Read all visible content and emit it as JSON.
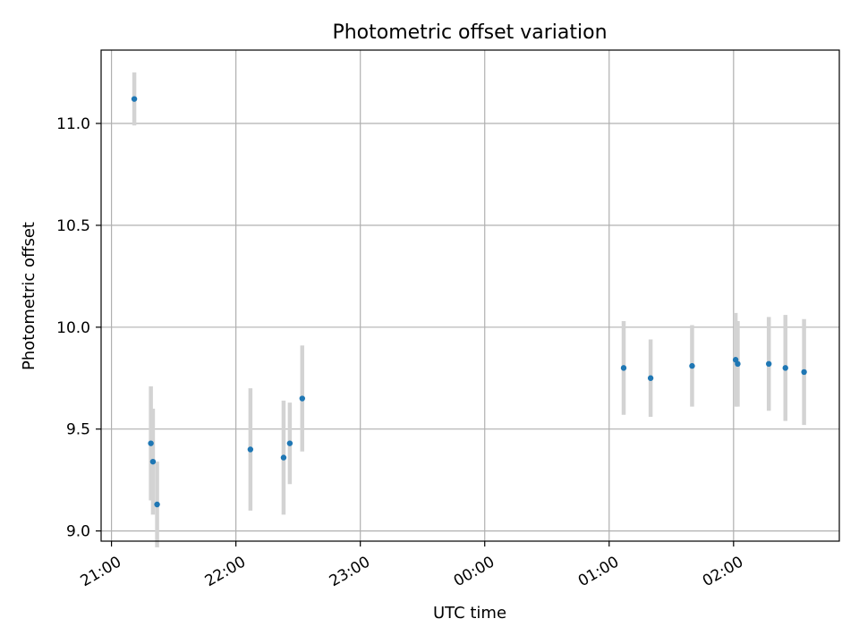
{
  "chart_data": {
    "type": "scatter",
    "title": "Photometric offset variation",
    "xlabel": "UTC time",
    "ylabel": "Photometric offset",
    "x_axis_type": "time",
    "xlim": [
      "20:55",
      "02:51"
    ],
    "ylim": [
      8.95,
      11.36
    ],
    "grid": true,
    "x_ticks": [
      "21:00",
      "22:00",
      "23:00",
      "00:00",
      "01:00",
      "02:00"
    ],
    "y_ticks": [
      "9.0",
      "9.5",
      "10.0",
      "10.5",
      "11.0"
    ],
    "marker_color": "#1f77b4",
    "errorbar_color": "#d3d3d3",
    "points": [
      {
        "x": "21:11",
        "y": 11.12,
        "err": 0.13
      },
      {
        "x": "21:19",
        "y": 9.43,
        "err": 0.28
      },
      {
        "x": "21:20",
        "y": 9.34,
        "err": 0.26
      },
      {
        "x": "21:22",
        "y": 9.13,
        "err": 0.21
      },
      {
        "x": "22:07",
        "y": 9.4,
        "err": 0.3
      },
      {
        "x": "22:23",
        "y": 9.36,
        "err": 0.28
      },
      {
        "x": "22:26",
        "y": 9.43,
        "err": 0.2
      },
      {
        "x": "22:32",
        "y": 9.65,
        "err": 0.26
      },
      {
        "x": "01:07",
        "y": 9.8,
        "err": 0.23
      },
      {
        "x": "01:20",
        "y": 9.75,
        "err": 0.19
      },
      {
        "x": "01:40",
        "y": 9.81,
        "err": 0.2
      },
      {
        "x": "02:01",
        "y": 9.84,
        "err": 0.23
      },
      {
        "x": "02:02",
        "y": 9.82,
        "err": 0.21
      },
      {
        "x": "02:17",
        "y": 9.82,
        "err": 0.23
      },
      {
        "x": "02:25",
        "y": 9.8,
        "err": 0.26
      },
      {
        "x": "02:34",
        "y": 9.78,
        "err": 0.26
      }
    ]
  }
}
